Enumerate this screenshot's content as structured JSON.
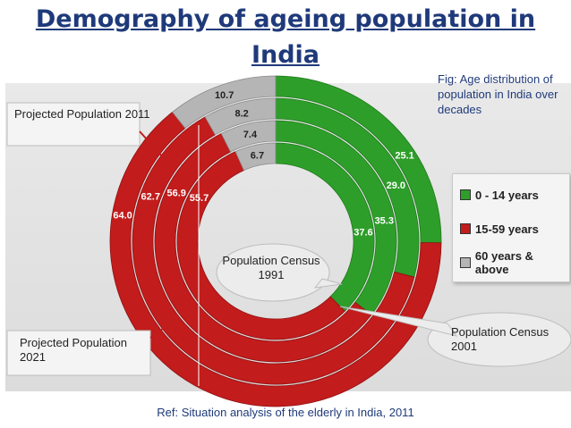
{
  "page": {
    "title_line1": "Demography of ageing population in",
    "title_line2": "India",
    "fig_caption": "Fig: Age distribution of population in India over decades",
    "reference": "Ref: Situation analysis of the elderly in India, 2011"
  },
  "legend": [
    {
      "label": "0 - 14 years",
      "color": "#2e9e2a"
    },
    {
      "label": "15-59 years",
      "color": "#c21c1c"
    },
    {
      "label": "60 years & above",
      "color": "#b5b5b5"
    }
  ],
  "callouts": {
    "projected_2011": "Projected Population 2011",
    "projected_2021": "Projected Population 2021",
    "census_1991": "Population Census 1991",
    "census_2001": "Population Census 2001"
  },
  "chart_data": {
    "type": "pie",
    "subtype": "multi-ring donut",
    "title": "Age distribution of population in India over decades",
    "categories": [
      "0 - 14 years",
      "15-59 years",
      "60 years & above"
    ],
    "rings_order": "inner to outer",
    "series": [
      {
        "name": "Population Census 1991",
        "values": [
          37.6,
          55.7,
          6.7
        ]
      },
      {
        "name": "Population Census 2001",
        "values": [
          35.3,
          56.9,
          7.4
        ]
      },
      {
        "name": "Projected Population 2011",
        "values": [
          29.0,
          62.7,
          8.2
        ]
      },
      {
        "name": "Projected Population 2021",
        "values": [
          25.1,
          64.0,
          10.7
        ]
      }
    ],
    "colors": [
      "#2e9e2a",
      "#c21c1c",
      "#b5b5b5"
    ]
  }
}
